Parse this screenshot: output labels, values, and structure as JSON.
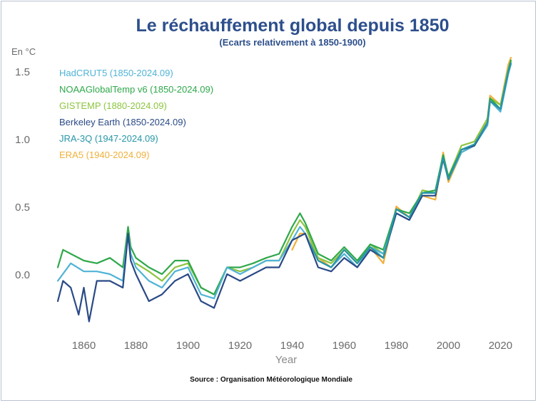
{
  "chart_data": {
    "type": "line",
    "title": "Le réchauffement global depuis 1850",
    "subtitle": "(Ecarts relativement à 1850-1900)",
    "ylabel": "En °C",
    "xlabel": "Year",
    "source": "Source : Organisation Météorologique Mondiale",
    "xlim": [
      1850,
      2024
    ],
    "ylim": [
      -0.3,
      1.6
    ],
    "xticks": [
      1860,
      1880,
      1900,
      1920,
      1940,
      1960,
      1980,
      2000,
      2020
    ],
    "yticks": [
      0.0,
      0.5,
      1.0,
      1.5
    ],
    "ytick_labels": [
      "0.0",
      "0.5",
      "1.0",
      "1.5"
    ],
    "grid": false,
    "legend_position": "top-left",
    "series": [
      {
        "name": "HadCRUT5 (1850-2024.09)",
        "color": "#4fb3d6",
        "x": [
          1850,
          1855,
          1860,
          1865,
          1870,
          1875,
          1876,
          1877,
          1878,
          1880,
          1885,
          1890,
          1895,
          1900,
          1905,
          1910,
          1915,
          1920,
          1925,
          1930,
          1935,
          1940,
          1943,
          1945,
          1950,
          1955,
          1960,
          1965,
          1970,
          1975,
          1980,
          1985,
          1990,
          1995,
          1998,
          2000,
          2005,
          2010,
          2015,
          2016,
          2020,
          2023,
          2024
        ],
        "y": [
          -0.05,
          0.08,
          0.02,
          0.02,
          0.0,
          -0.05,
          0.15,
          0.3,
          0.15,
          0.05,
          -0.05,
          -0.1,
          0.02,
          0.05,
          -0.15,
          -0.18,
          0.05,
          0.0,
          0.05,
          0.1,
          0.1,
          0.25,
          0.35,
          0.3,
          0.1,
          0.05,
          0.15,
          0.05,
          0.2,
          0.15,
          0.45,
          0.4,
          0.6,
          0.6,
          0.85,
          0.7,
          0.9,
          0.95,
          1.1,
          1.28,
          1.2,
          1.48,
          1.55
        ]
      },
      {
        "name": "NOAAGlobalTemp v6 (1850-2024.09)",
        "color": "#2ea84a",
        "x": [
          1850,
          1852,
          1855,
          1860,
          1865,
          1870,
          1875,
          1876,
          1877,
          1878,
          1880,
          1885,
          1890,
          1895,
          1900,
          1905,
          1910,
          1915,
          1920,
          1925,
          1930,
          1935,
          1940,
          1943,
          1945,
          1950,
          1955,
          1960,
          1965,
          1970,
          1975,
          1980,
          1985,
          1990,
          1995,
          1998,
          2000,
          2005,
          2010,
          2015,
          2016,
          2020,
          2023,
          2024
        ],
        "y": [
          0.05,
          0.18,
          0.15,
          0.1,
          0.08,
          0.12,
          0.05,
          0.2,
          0.35,
          0.2,
          0.12,
          0.05,
          0.0,
          0.1,
          0.1,
          -0.1,
          -0.15,
          0.05,
          0.05,
          0.08,
          0.12,
          0.15,
          0.35,
          0.45,
          0.38,
          0.15,
          0.1,
          0.2,
          0.1,
          0.22,
          0.18,
          0.48,
          0.45,
          0.6,
          0.62,
          0.88,
          0.72,
          0.92,
          0.95,
          1.12,
          1.3,
          1.22,
          1.5,
          1.58
        ]
      },
      {
        "name": "GISTEMP (1880-2024.09)",
        "color": "#8cc43f",
        "x": [
          1880,
          1885,
          1890,
          1895,
          1900,
          1905,
          1910,
          1915,
          1920,
          1925,
          1930,
          1935,
          1940,
          1943,
          1945,
          1950,
          1955,
          1960,
          1965,
          1970,
          1975,
          1980,
          1985,
          1990,
          1995,
          1998,
          2000,
          2005,
          2010,
          2015,
          2016,
          2020,
          2023,
          2024
        ],
        "y": [
          0.08,
          0.02,
          -0.05,
          0.05,
          0.08,
          -0.1,
          -0.15,
          0.05,
          0.02,
          0.05,
          0.1,
          0.1,
          0.3,
          0.4,
          0.35,
          0.12,
          0.08,
          0.18,
          0.08,
          0.22,
          0.15,
          0.48,
          0.42,
          0.62,
          0.6,
          0.88,
          0.72,
          0.95,
          0.98,
          1.15,
          1.3,
          1.25,
          1.52,
          1.58
        ]
      },
      {
        "name": "Berkeley Earth (1850-2024.09)",
        "color": "#2a4a86",
        "x": [
          1850,
          1852,
          1855,
          1858,
          1860,
          1862,
          1865,
          1870,
          1875,
          1876,
          1877,
          1878,
          1880,
          1885,
          1890,
          1895,
          1900,
          1905,
          1910,
          1915,
          1920,
          1925,
          1930,
          1935,
          1940,
          1945,
          1950,
          1955,
          1960,
          1965,
          1970,
          1975,
          1980,
          1985,
          1990,
          1995,
          1998,
          2000,
          2005,
          2010,
          2015,
          2016,
          2020,
          2023,
          2024
        ],
        "y": [
          -0.2,
          -0.05,
          -0.1,
          -0.3,
          -0.1,
          -0.35,
          -0.05,
          -0.05,
          -0.1,
          0.1,
          0.3,
          0.1,
          0.0,
          -0.2,
          -0.15,
          -0.05,
          0.0,
          -0.2,
          -0.25,
          0.0,
          -0.05,
          0.0,
          0.05,
          0.05,
          0.25,
          0.3,
          0.05,
          0.02,
          0.12,
          0.05,
          0.18,
          0.12,
          0.45,
          0.4,
          0.58,
          0.58,
          0.85,
          0.7,
          0.92,
          0.95,
          1.12,
          1.28,
          1.22,
          1.5,
          1.56
        ]
      },
      {
        "name": "JRA-3Q (1947-2024.09)",
        "color": "#2796a8",
        "x": [
          1947,
          1950,
          1955,
          1960,
          1965,
          1970,
          1975,
          1980,
          1985,
          1990,
          1995,
          1998,
          2000,
          2005,
          2010,
          2015,
          2016,
          2020,
          2023,
          2024
        ],
        "y": [
          0.22,
          0.1,
          0.05,
          0.18,
          0.08,
          0.2,
          0.12,
          0.48,
          0.42,
          0.6,
          0.6,
          0.86,
          0.7,
          0.92,
          0.96,
          1.12,
          1.28,
          1.22,
          1.5,
          1.56
        ]
      },
      {
        "name": "ERA5 (1940-2024.09)",
        "color": "#f0b03a",
        "x": [
          1940,
          1943,
          1945,
          1950,
          1955,
          1960,
          1965,
          1970,
          1975,
          1980,
          1985,
          1990,
          1995,
          1998,
          2000,
          2005,
          2010,
          2015,
          2016,
          2020,
          2023,
          2024
        ],
        "y": [
          0.18,
          0.3,
          0.3,
          0.12,
          0.05,
          0.18,
          0.08,
          0.2,
          0.08,
          0.5,
          0.42,
          0.58,
          0.55,
          0.9,
          0.68,
          0.9,
          0.95,
          1.15,
          1.32,
          1.25,
          1.55,
          1.6
        ]
      }
    ]
  }
}
